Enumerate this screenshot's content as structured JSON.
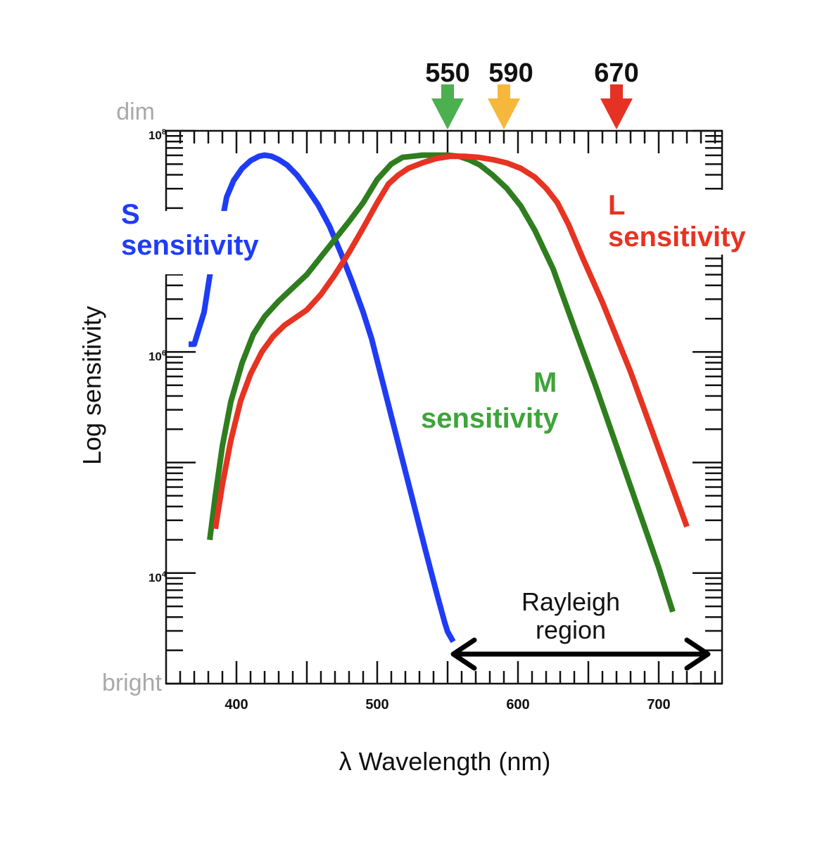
{
  "chart_data": {
    "type": "line",
    "title": "",
    "xlabel": "λ Wavelength (nm)",
    "ylabel": "Log sensitivity",
    "x_ticks": [
      400,
      500,
      600,
      700
    ],
    "y_ticks": [
      {
        "value": 4,
        "base": "10",
        "exp": "4"
      },
      {
        "value": 6,
        "base": "10",
        "exp": "6"
      },
      {
        "value": 8,
        "base": "10",
        "exp": "8"
      }
    ],
    "xlim": [
      350,
      745
    ],
    "ylim": [
      3.0,
      8.0
    ],
    "y_scale": "log",
    "top_label": "dim",
    "bottom_label": "bright",
    "series": [
      {
        "name": "S sensitivity",
        "color": "#1f3cf5",
        "label_line1": "S",
        "label_line2": "sensitivity",
        "x": [
          366,
          370,
          377,
          383,
          388,
          393,
          398,
          404,
          410,
          416,
          420,
          425,
          430,
          436,
          443,
          450,
          458,
          466,
          474,
          482,
          490,
          496,
          502,
          510,
          518,
          526,
          534,
          542,
          548,
          550,
          554
        ],
        "y": [
          6.07,
          6.07,
          6.36,
          6.85,
          7.06,
          7.4,
          7.55,
          7.66,
          7.73,
          7.77,
          7.78,
          7.77,
          7.74,
          7.69,
          7.6,
          7.48,
          7.33,
          7.14,
          6.9,
          6.64,
          6.36,
          6.12,
          5.82,
          5.42,
          5.02,
          4.62,
          4.22,
          3.83,
          3.55,
          3.47,
          3.38
        ]
      },
      {
        "name": "M sensitivity",
        "color": "#2e7d1e",
        "label_line1": "M",
        "label_line2": "sensitivity",
        "x": [
          381,
          385,
          390,
          396,
          404,
          412,
          420,
          430,
          440,
          450,
          460,
          470,
          480,
          490,
          500,
          510,
          518,
          525,
          532,
          540,
          550,
          558,
          565,
          573,
          582,
          592,
          602,
          612,
          625,
          640,
          655,
          670,
          685,
          700,
          710
        ],
        "y": [
          4.3,
          4.7,
          5.15,
          5.55,
          5.9,
          6.16,
          6.32,
          6.46,
          6.58,
          6.7,
          6.86,
          7.02,
          7.18,
          7.35,
          7.56,
          7.7,
          7.76,
          7.77,
          7.78,
          7.78,
          7.78,
          7.77,
          7.74,
          7.69,
          7.6,
          7.48,
          7.32,
          7.1,
          6.75,
          6.22,
          5.7,
          5.15,
          4.6,
          4.05,
          3.65
        ]
      },
      {
        "name": "L sensitivity",
        "color": "#e63322",
        "label_line1": "L",
        "label_line2": "sensitivity",
        "x": [
          385,
          390,
          396,
          403,
          410,
          418,
          426,
          434,
          442,
          450,
          460,
          470,
          480,
          490,
          500,
          508,
          515,
          522,
          532,
          542,
          552,
          562,
          572,
          582,
          592,
          602,
          612,
          620,
          628,
          636,
          646,
          660,
          680,
          700,
          720
        ],
        "y": [
          4.4,
          4.8,
          5.2,
          5.56,
          5.8,
          6.0,
          6.14,
          6.24,
          6.31,
          6.38,
          6.52,
          6.7,
          6.9,
          7.12,
          7.35,
          7.52,
          7.6,
          7.66,
          7.71,
          7.75,
          7.77,
          7.77,
          7.76,
          7.74,
          7.71,
          7.66,
          7.58,
          7.48,
          7.35,
          7.15,
          6.85,
          6.45,
          5.82,
          5.12,
          4.42
        ]
      }
    ],
    "markers": [
      {
        "value": 550,
        "label": "550",
        "color": "#4caf50"
      },
      {
        "value": 590,
        "label": "590",
        "color": "#f5b83d"
      },
      {
        "value": 670,
        "label": "670",
        "color": "#e53224"
      }
    ],
    "annotation": {
      "line1": "Rayleigh",
      "line2": "region",
      "x_start": 550,
      "x_end": 735
    }
  }
}
